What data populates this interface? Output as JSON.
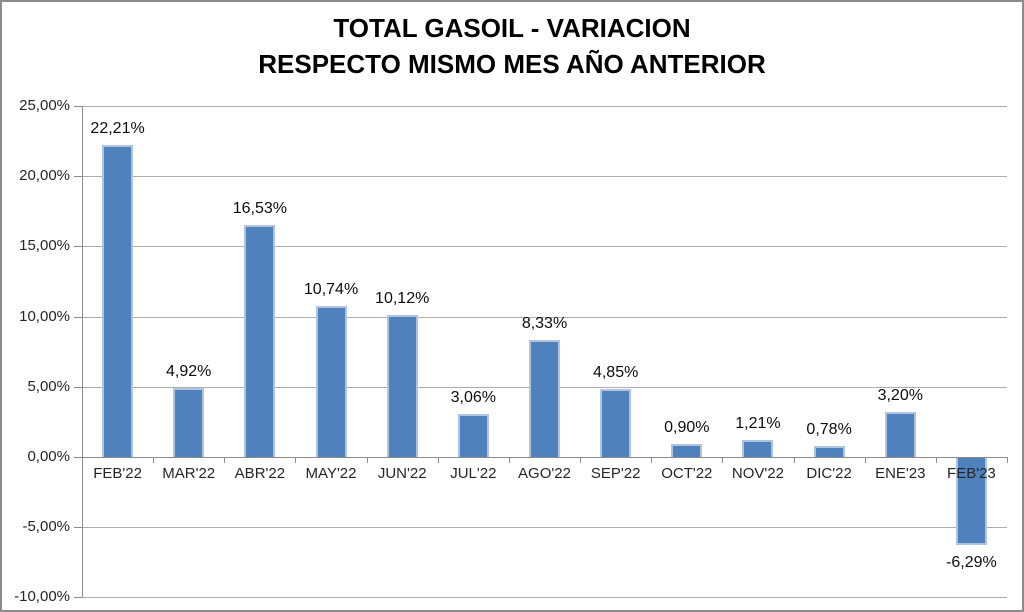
{
  "title": {
    "line1": "TOTAL GASOIL - VARIACION",
    "line2": "RESPECTO MISMO MES AÑO ANTERIOR"
  },
  "chart_data": {
    "type": "bar",
    "title": "TOTAL GASOIL - VARIACION RESPECTO MISMO MES AÑO ANTERIOR",
    "categories": [
      "FEB'22",
      "MAR'22",
      "ABR'22",
      "MAY'22",
      "JUN'22",
      "JUL'22",
      "AGO'22",
      "SEP'22",
      "OCT'22",
      "NOV'22",
      "DIC'22",
      "ENE'23",
      "FEB'23"
    ],
    "values": [
      22.21,
      4.92,
      16.53,
      10.74,
      10.12,
      3.06,
      8.33,
      4.85,
      0.9,
      1.21,
      0.78,
      3.2,
      -6.29
    ],
    "data_labels": [
      "22,21%",
      "4,92%",
      "16,53%",
      "10,74%",
      "10,12%",
      "3,06%",
      "8,33%",
      "4,85%",
      "0,90%",
      "1,21%",
      "0,78%",
      "3,20%",
      "-6,29%"
    ],
    "xlabel": "",
    "ylabel": "",
    "ylim": [
      -10,
      25
    ],
    "ytick_step": 5,
    "ytick_values": [
      25,
      20,
      15,
      10,
      5,
      0,
      -5,
      -10
    ],
    "ytick_labels": [
      "25,00%",
      "20,00%",
      "15,00%",
      "10,00%",
      "5,00%",
      "0,00%",
      "-5,00%",
      "-10,00%"
    ],
    "grid": true,
    "legend": false,
    "colors": {
      "bar_fill": "#4F81BD",
      "bar_edge": "#AEC4E0",
      "gridline": "#ADADAD",
      "axis": "#8C8C8C",
      "outer_border": "#8C8C8C",
      "title_text": "#000000",
      "axis_text": "#262626",
      "datalabel_text": "#0d0d0d"
    }
  }
}
